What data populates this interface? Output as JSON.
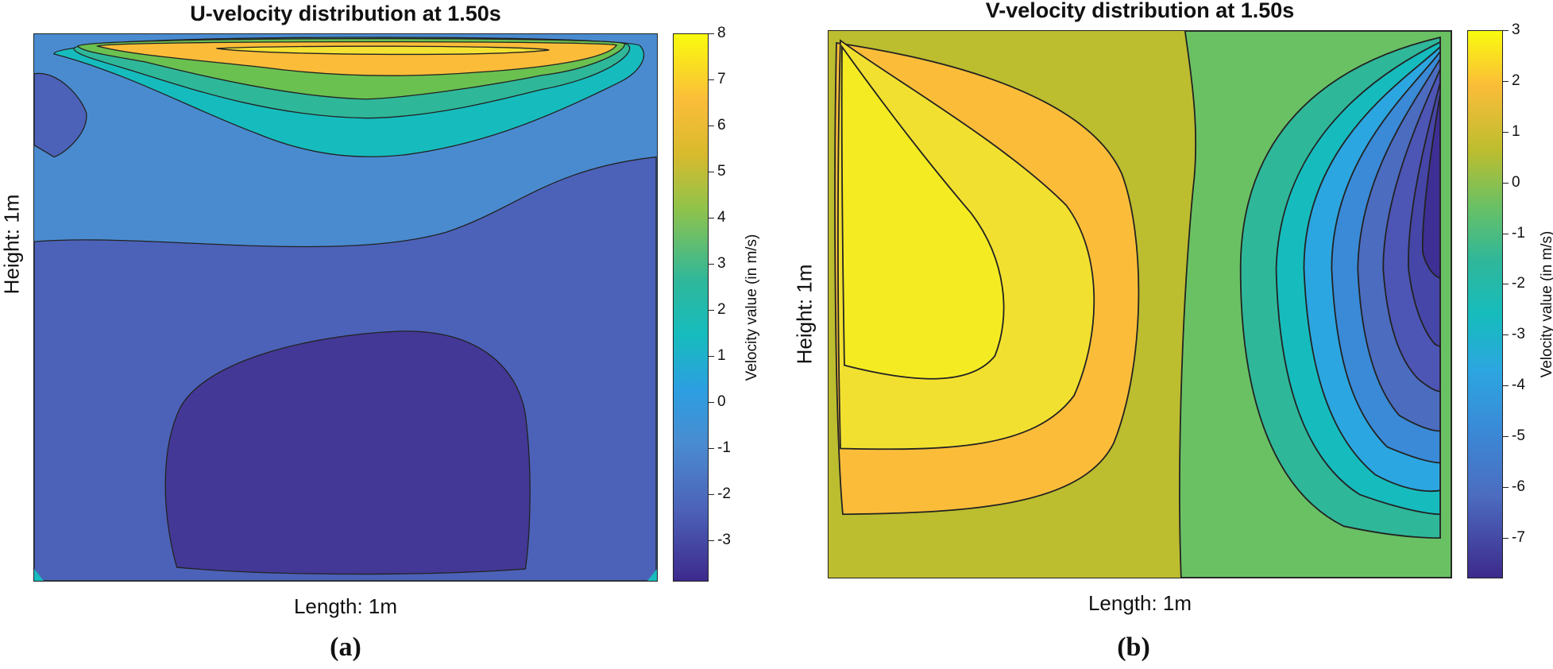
{
  "chart_data": [
    {
      "type": "heatmap",
      "subtype": "filled-contour",
      "caption": "(a)",
      "title": "U-velocity distribution at 1.50s",
      "xlabel": "Length: 1m",
      "ylabel": "Height: 1m",
      "colorbar": {
        "label": "Velocity value (in m/s)",
        "range": [
          -3.9,
          8.0
        ],
        "ticks": [
          "8",
          "7",
          "6",
          "5",
          "4",
          "3",
          "2",
          "1",
          "0",
          "-1",
          "-2",
          "-3"
        ],
        "tick_values": [
          8,
          7,
          6,
          5,
          4,
          3,
          2,
          1,
          0,
          -1,
          -2,
          -3
        ]
      },
      "contour_levels": [
        -3,
        -2,
        0,
        2,
        4,
        6,
        7
      ],
      "regions": [
        {
          "level": "below -3",
          "location": "lower-center"
        },
        {
          "level": "-3 to -2",
          "location": "lower half"
        },
        {
          "level": "-2 to 0",
          "location": "upper-middle band"
        },
        {
          "level": "0 to 2",
          "location": "top band"
        },
        {
          "level": "2 to 4",
          "location": "top band"
        },
        {
          "level": "4 to 6",
          "location": "top band"
        },
        {
          "level": "6 to 8",
          "location": "top-center (lid)"
        }
      ]
    },
    {
      "type": "heatmap",
      "subtype": "filled-contour",
      "caption": "(b)",
      "title": "V-velocity distribution at 1.50s",
      "xlabel": "Length: 1m",
      "ylabel": "Height: 1m",
      "colorbar": {
        "label": "Velocity value (in m/s)",
        "range": [
          -7.8,
          3.0
        ],
        "ticks": [
          "3",
          "2",
          "1",
          "0",
          "-1",
          "-2",
          "-3",
          "-4",
          "-5",
          "-6",
          "-7"
        ],
        "tick_values": [
          3,
          2,
          1,
          0,
          -1,
          -2,
          -3,
          -4,
          -5,
          -6,
          -7
        ]
      },
      "contour_levels": [
        -7,
        -6,
        -5,
        -4,
        -3,
        -2,
        -1,
        0,
        1,
        2
      ],
      "regions": [
        {
          "level": "2 to 3",
          "location": "left core"
        },
        {
          "level": "1 to 2",
          "location": "left ring"
        },
        {
          "level": "0 to 1",
          "location": "left outer ring"
        },
        {
          "level": "-1 to 0",
          "location": "center / background"
        },
        {
          "level": "-2 to -1",
          "location": "right outer"
        },
        {
          "level": "-7 to -2",
          "location": "right nested rings"
        },
        {
          "level": "below -7",
          "location": "right core near wall"
        }
      ]
    }
  ]
}
